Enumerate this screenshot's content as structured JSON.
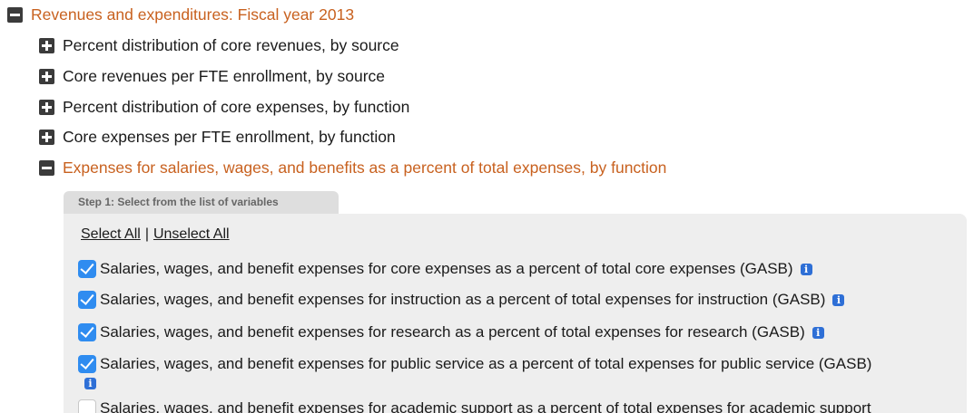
{
  "tree": {
    "section_title": "Revenues and expenditures: Fiscal year 2013",
    "items": [
      {
        "label": "Percent distribution of core revenues, by source",
        "expanded": false
      },
      {
        "label": "Core revenues per FTE enrollment, by source",
        "expanded": false
      },
      {
        "label": "Percent distribution of core expenses, by function",
        "expanded": false
      },
      {
        "label": "Core expenses per FTE enrollment, by function",
        "expanded": false
      },
      {
        "label": "Expenses for salaries, wages, and benefits as a percent of total expenses, by function",
        "expanded": true
      }
    ]
  },
  "step": {
    "tab_label": "Step 1: Select from the list of variables",
    "select_all": "Select All",
    "separator": "|",
    "unselect_all": "Unselect All"
  },
  "variables": [
    {
      "label": "Salaries, wages, and benefit expenses for core expenses as a percent of total core expenses (GASB)",
      "checked": true
    },
    {
      "label": "Salaries, wages, and benefit expenses for instruction as a percent of total expenses for instruction (GASB)",
      "checked": true
    },
    {
      "label": "Salaries, wages, and benefit expenses for research as a percent of total expenses for research (GASB)",
      "checked": true
    },
    {
      "label": "Salaries, wages, and benefit expenses for public service as a percent of total expenses for public service (GASB)",
      "checked": true
    },
    {
      "label": "Salaries, wages, and benefit expenses for academic support as a percent of total expenses for academic support",
      "checked": false
    }
  ],
  "icons": {
    "info": "i"
  },
  "colors": {
    "accent_orange": "#c8611f",
    "checkbox_blue": "#2f8cf0",
    "info_blue": "#2e6fd6"
  }
}
